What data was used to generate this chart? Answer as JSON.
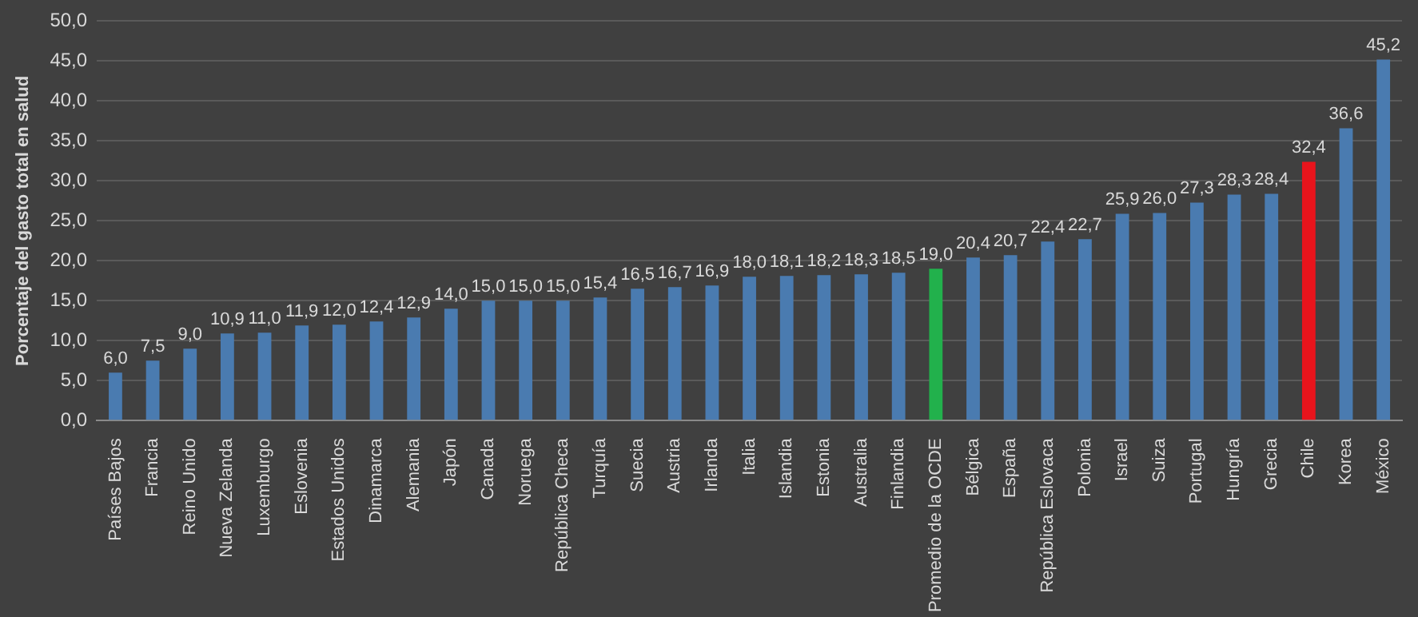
{
  "chart_data": {
    "type": "bar",
    "ylabel": "Porcentaje del gasto total en salud",
    "categories": [
      "Países Bajos",
      "Francia",
      "Reino Unido",
      "Nueva Zelanda",
      "Luxemburgo",
      "Eslovenia",
      "Estados Unidos",
      "Dinamarca",
      "Alemania",
      "Japón",
      "Canada",
      "Noruega",
      "República Checa",
      "Turquía",
      "Suecia",
      "Austria",
      "Irlanda",
      "Italia",
      "Islandia",
      "Estonia",
      "Australia",
      "Finlandia",
      "Promedio de la OCDE",
      "Bélgica",
      "España",
      "República Eslovaca",
      "Polonia",
      "Israel",
      "Suiza",
      "Portugal",
      "Hungría",
      "Grecia",
      "Chile",
      "Korea",
      "México"
    ],
    "values": [
      6.0,
      7.5,
      9.0,
      10.9,
      11.0,
      11.9,
      12.0,
      12.4,
      12.9,
      14.0,
      15.0,
      15.0,
      15.0,
      15.4,
      16.5,
      16.7,
      16.9,
      18.0,
      18.1,
      18.2,
      18.3,
      18.5,
      19.0,
      20.4,
      20.7,
      22.4,
      22.7,
      25.9,
      26.0,
      27.3,
      28.3,
      28.4,
      32.4,
      36.6,
      45.2
    ],
    "value_labels": [
      "6,0",
      "7,5",
      "9,0",
      "10,9",
      "11,0",
      "11,9",
      "12,0",
      "12,4",
      "12,9",
      "14,0",
      "15,0",
      "15,0",
      "15,0",
      "15,4",
      "16,5",
      "16,7",
      "16,9",
      "18,0",
      "18,1",
      "18,2",
      "18,3",
      "18,5",
      "19,0",
      "20,4",
      "20,7",
      "22,4",
      "22,7",
      "25,9",
      "26,0",
      "27,3",
      "28,3",
      "28,4",
      "32,4",
      "36,6",
      "45,2"
    ],
    "colors": [
      "#4a7bb0",
      "#4a7bb0",
      "#4a7bb0",
      "#4a7bb0",
      "#4a7bb0",
      "#4a7bb0",
      "#4a7bb0",
      "#4a7bb0",
      "#4a7bb0",
      "#4a7bb0",
      "#4a7bb0",
      "#4a7bb0",
      "#4a7bb0",
      "#4a7bb0",
      "#4a7bb0",
      "#4a7bb0",
      "#4a7bb0",
      "#4a7bb0",
      "#4a7bb0",
      "#4a7bb0",
      "#4a7bb0",
      "#4a7bb0",
      "#22b14c",
      "#4a7bb0",
      "#4a7bb0",
      "#4a7bb0",
      "#4a7bb0",
      "#4a7bb0",
      "#4a7bb0",
      "#4a7bb0",
      "#4a7bb0",
      "#4a7bb0",
      "#e8141c",
      "#4a7bb0",
      "#4a7bb0"
    ],
    "ylim": [
      0,
      50
    ],
    "yticks": [
      {
        "value": 0,
        "label": "0,0"
      },
      {
        "value": 5,
        "label": "5,0"
      },
      {
        "value": 10,
        "label": "10,0"
      },
      {
        "value": 15,
        "label": "15,0"
      },
      {
        "value": 20,
        "label": "20,0"
      },
      {
        "value": 25,
        "label": "25,0"
      },
      {
        "value": 30,
        "label": "30,0"
      },
      {
        "value": 35,
        "label": "35,0"
      },
      {
        "value": 40,
        "label": "40,0"
      },
      {
        "value": 45,
        "label": "45,0"
      },
      {
        "value": 50,
        "label": "50,0"
      }
    ],
    "grid": "y",
    "legend": false
  }
}
